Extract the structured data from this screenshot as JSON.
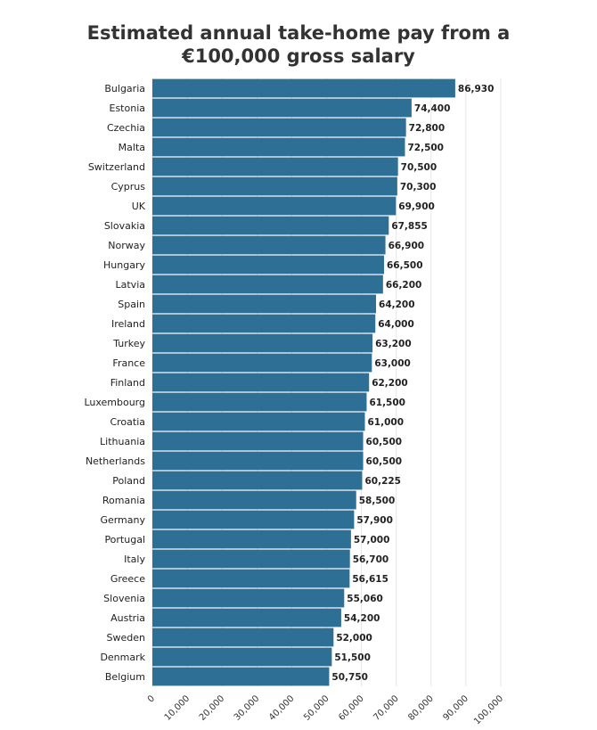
{
  "chart_data": {
    "type": "bar",
    "orientation": "horizontal",
    "title_lines": [
      "Estimated annual take-home pay from a",
      "€100,000 gross salary"
    ],
    "categories": [
      "Bulgaria",
      "Estonia",
      "Czechia",
      "Malta",
      "Switzerland",
      "Cyprus",
      "UK",
      "Slovakia",
      "Norway",
      "Hungary",
      "Latvia",
      "Spain",
      "Ireland",
      "Turkey",
      "France",
      "Finland",
      "Luxembourg",
      "Croatia",
      "Lithuania",
      "Netherlands",
      "Poland",
      "Romania",
      "Germany",
      "Portugal",
      "Italy",
      "Greece",
      "Slovenia",
      "Austria",
      "Sweden",
      "Denmark",
      "Belgium"
    ],
    "values": [
      86930,
      74400,
      72800,
      72500,
      70500,
      70300,
      69900,
      67855,
      66900,
      66500,
      66200,
      64200,
      64000,
      63200,
      63000,
      62200,
      61500,
      61000,
      60500,
      60500,
      60225,
      58500,
      57900,
      57000,
      56700,
      56615,
      55060,
      54200,
      52000,
      51500,
      50750
    ],
    "value_labels": [
      "86,930",
      "74,400",
      "72,800",
      "72,500",
      "70,500",
      "70,300",
      "69,900",
      "67,855",
      "66,900",
      "66,500",
      "66,200",
      "64,200",
      "64,000",
      "63,200",
      "63,000",
      "62,200",
      "61,500",
      "61,000",
      "60,500",
      "60,500",
      "60,225",
      "58,500",
      "57,900",
      "57,000",
      "56,700",
      "56,615",
      "55,060",
      "54,200",
      "52,000",
      "51,500",
      "50,750"
    ],
    "x_ticks": [
      0,
      10000,
      20000,
      30000,
      40000,
      50000,
      60000,
      70000,
      80000,
      90000,
      100000
    ],
    "x_tick_labels": [
      "0",
      "10,000",
      "20,000",
      "30,000",
      "40,000",
      "50,000",
      "60,000",
      "70,000",
      "80,000",
      "90,000",
      "100,000"
    ],
    "xlim": [
      0,
      100000
    ],
    "grid": true,
    "bar_color": "#2e6f96",
    "grid_color": "#e6e6e6"
  }
}
